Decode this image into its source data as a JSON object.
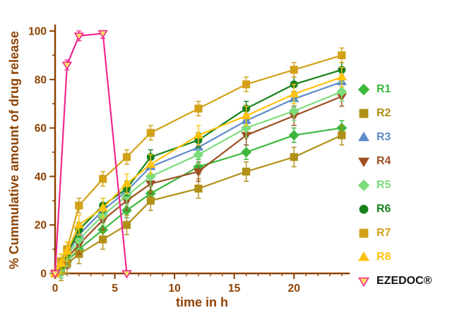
{
  "chart_data": {
    "type": "line",
    "title": "",
    "xlabel": "time in h",
    "ylabel": "% Cummulative amount of drug release",
    "xlim": [
      0,
      24.6
    ],
    "ylim": [
      0,
      100
    ],
    "xticks": [
      0,
      5,
      10,
      15,
      20
    ],
    "yticks": [
      0,
      20,
      40,
      60,
      80,
      100
    ],
    "x_minor_step": 1,
    "y_minor_ticks": [
      10,
      30,
      50,
      70,
      90
    ],
    "grid": false,
    "legend_position": "right",
    "axis_color": "#8E4201",
    "error_bars": true,
    "series": [
      {
        "name": "R1",
        "color": "#3CB83C",
        "marker": "diamond",
        "open": false,
        "error": 3,
        "x": [
          0,
          0.5,
          1,
          2,
          4,
          6,
          8,
          12,
          16,
          20,
          24
        ],
        "values": [
          0,
          2,
          5,
          10,
          18,
          26,
          33,
          44,
          50,
          57,
          60
        ]
      },
      {
        "name": "R2",
        "color": "#B09016",
        "marker": "square",
        "open": false,
        "error": 4,
        "x": [
          0,
          0.5,
          1,
          2,
          4,
          6,
          8,
          12,
          16,
          20,
          24
        ],
        "values": [
          0,
          1,
          4,
          8,
          14,
          20,
          30,
          35,
          42,
          48,
          57
        ]
      },
      {
        "name": "R3",
        "color": "#5E8BC9",
        "marker": "triangle",
        "open": false,
        "error": 3,
        "x": [
          0,
          0.5,
          1,
          2,
          4,
          6,
          8,
          12,
          16,
          20,
          24
        ],
        "values": [
          0,
          3,
          8,
          16,
          26,
          34,
          44,
          52,
          63,
          72,
          79
        ]
      },
      {
        "name": "R4",
        "color": "#9E5021",
        "marker": "triangle-down",
        "open": false,
        "error": 4,
        "x": [
          0,
          0.5,
          1,
          2,
          4,
          6,
          8,
          12,
          16,
          20,
          24
        ],
        "values": [
          0,
          2,
          6,
          12,
          22,
          30,
          37,
          42,
          57,
          65,
          73
        ]
      },
      {
        "name": "R5",
        "color": "#7CDC7C",
        "marker": "diamond",
        "open": false,
        "error": 4,
        "x": [
          0,
          0.5,
          1,
          2,
          4,
          6,
          8,
          12,
          16,
          20,
          24
        ],
        "values": [
          0,
          2,
          7,
          14,
          24,
          32,
          40,
          49,
          60,
          67,
          75
        ]
      },
      {
        "name": "R6",
        "color": "#17821B",
        "marker": "circle",
        "open": false,
        "error": 3,
        "x": [
          0,
          0.5,
          1,
          2,
          4,
          6,
          8,
          12,
          16,
          20,
          24
        ],
        "values": [
          0,
          3,
          8,
          18,
          28,
          35,
          48,
          55,
          68,
          78,
          84
        ]
      },
      {
        "name": "R7",
        "color": "#D3A118",
        "marker": "square",
        "open": false,
        "error": 3,
        "x": [
          0,
          0.5,
          1,
          2,
          4,
          6,
          8,
          12,
          16,
          20,
          24
        ],
        "values": [
          0,
          5,
          10,
          28,
          39,
          48,
          58,
          68,
          78,
          84,
          90
        ]
      },
      {
        "name": "R8",
        "color": "#FFC20E",
        "marker": "triangle",
        "open": false,
        "error": 4,
        "x": [
          0,
          0.5,
          1,
          2,
          4,
          6,
          8,
          12,
          16,
          20,
          24
        ],
        "values": [
          0,
          4,
          9,
          20,
          27,
          37,
          45,
          57,
          65,
          74,
          81
        ]
      },
      {
        "name": "EZEDOC®",
        "color": "#F0288E",
        "marker": "triangle-down",
        "open": true,
        "marker_fill": "#FFE066",
        "label_color": "#111111",
        "error": 2,
        "x": [
          0,
          1,
          2,
          4,
          6
        ],
        "values": [
          0,
          86,
          98,
          99,
          0
        ]
      }
    ]
  }
}
